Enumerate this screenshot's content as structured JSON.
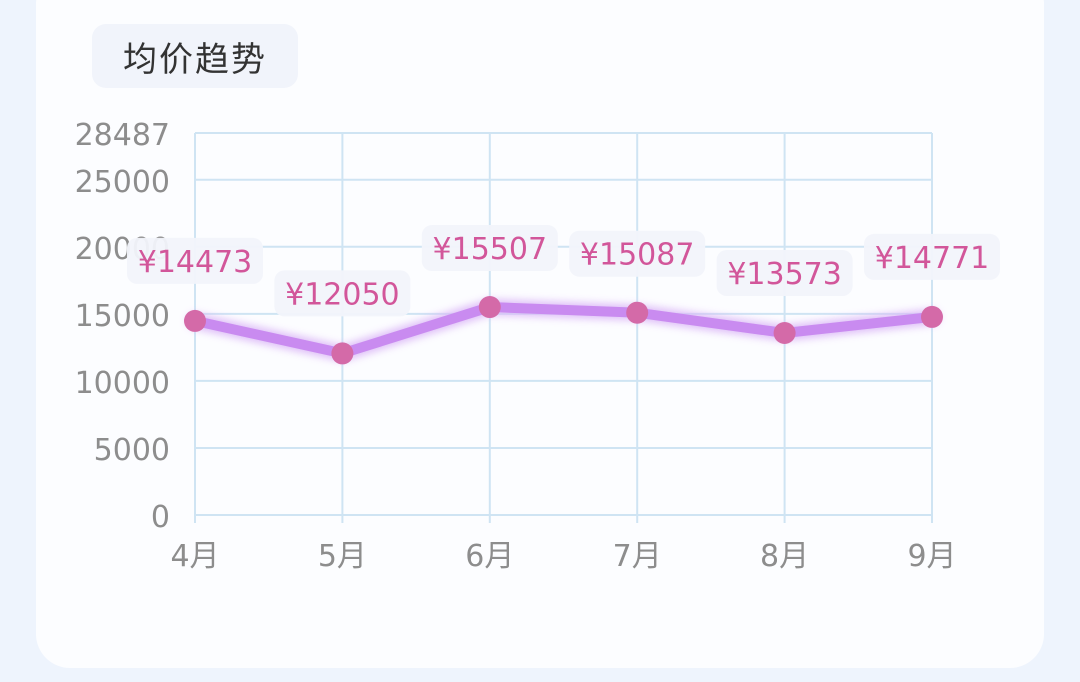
{
  "header": {
    "title": "均价趋势"
  },
  "colors": {
    "line": "#c98bf0",
    "line_glow": "#dcb8f7",
    "point": "#d46aa8",
    "label_text": "#d2569a",
    "label_bg": "#f2f4fb",
    "grid": "#cfe4f3",
    "tick_text": "#8d8d8d"
  },
  "chart_data": {
    "type": "line",
    "categories": [
      "4月",
      "5月",
      "6月",
      "7月",
      "8月",
      "9月"
    ],
    "series": [
      {
        "values": [
          14473,
          12050,
          15507,
          15087,
          13573,
          14771
        ]
      }
    ],
    "data_labels": [
      "¥14473",
      "¥12050",
      "¥15507",
      "¥15087",
      "¥13573",
      "¥14771"
    ],
    "yticks": [
      0,
      5000,
      10000,
      15000,
      20000,
      25000,
      28487
    ],
    "ylim": [
      0,
      28487
    ],
    "grid": true,
    "title": "均价趋势"
  }
}
